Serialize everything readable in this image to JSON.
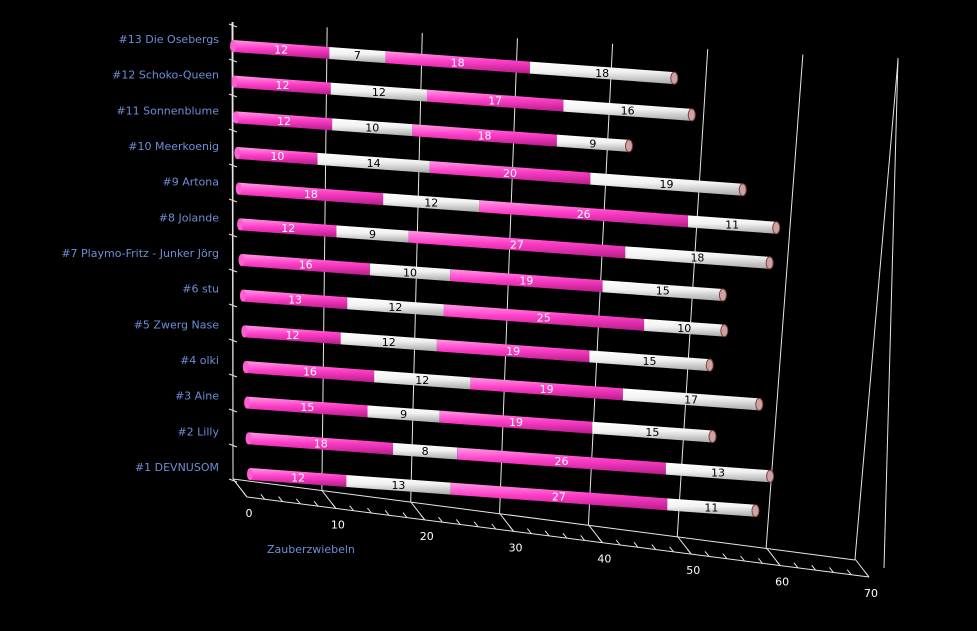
{
  "chart_data": {
    "type": "bar",
    "orientation": "horizontal-stacked-3d",
    "xlabel": "Zauberzwiebeln",
    "xlim": [
      0,
      70
    ],
    "xticks": [
      0,
      10,
      20,
      30,
      40,
      50,
      60,
      70
    ],
    "grid": true,
    "categories": [
      "#13 Die Osebergs",
      "#12 Schoko-Queen",
      "#11 Sonnenblume",
      "#10 Meerkoenig",
      "#9 Artona",
      "#8 Jolande",
      "#7 Playmo-Fritz - Junker Jörg",
      "#6 stu",
      "#5 Zwerg Nase",
      "#4 olki",
      "#3 Aine",
      "#2 Lilly",
      "#1 DEVNUSOM"
    ],
    "rows": [
      [
        [
          12,
          7,
          18,
          18
        ]
      ],
      [
        [
          12,
          12,
          17,
          16
        ]
      ],
      [
        [
          12,
          10,
          18,
          9
        ]
      ],
      [
        [
          10,
          14,
          20,
          19
        ]
      ],
      [
        [
          18,
          12,
          26,
          11
        ]
      ],
      [
        [
          12,
          9,
          27,
          18
        ]
      ],
      [
        [
          16,
          10,
          19,
          15
        ]
      ],
      [
        [
          13,
          12,
          25,
          10
        ]
      ],
      [
        [
          12,
          12,
          19,
          15
        ]
      ],
      [
        [
          16,
          12,
          19,
          17
        ]
      ],
      [
        [
          15,
          9,
          19,
          15
        ]
      ],
      [
        [
          18,
          8,
          26,
          13
        ]
      ],
      [
        [
          12,
          13,
          27,
          11
        ]
      ]
    ],
    "segment_colors": [
      "#ff3ec8",
      "#ffffff",
      "#ff3ec8",
      "#ffffff"
    ],
    "label_colors": [
      "#ffffff",
      "#000000",
      "#ffffff",
      "#000000"
    ]
  }
}
